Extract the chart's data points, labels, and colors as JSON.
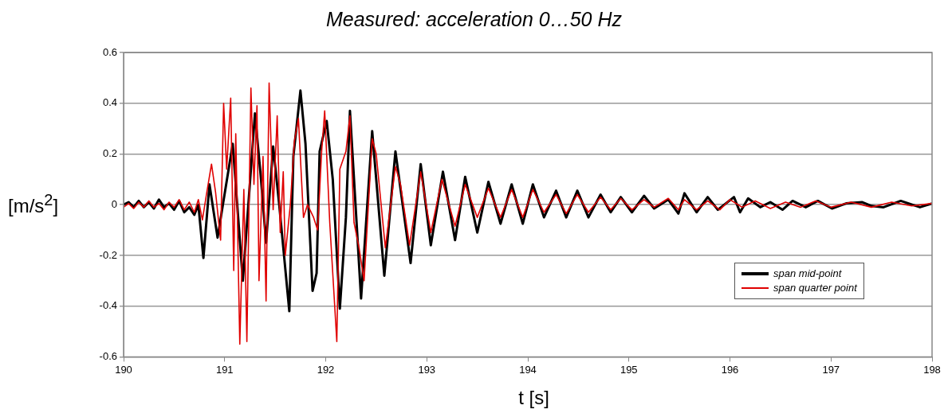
{
  "chart_data": {
    "type": "line",
    "title": "Measured: acceleration 0…50 Hz",
    "xlabel": "t [s]",
    "ylabel": "[m/s$^{2}$]",
    "xlim": [
      190,
      198
    ],
    "xticks": [
      190,
      191,
      192,
      193,
      194,
      195,
      196,
      197,
      198
    ],
    "ylim": [
      -0.6,
      0.6
    ],
    "yticks": [
      -0.6,
      -0.4,
      -0.2,
      0,
      0.2,
      0.4,
      0.6
    ],
    "grid": "y",
    "legend": "bottom right",
    "marker": "none",
    "line_style": "solid",
    "series": [
      {
        "name": "span mid-point",
        "color": "#000000",
        "x": [
          190.0,
          190.05,
          190.1,
          190.15,
          190.2,
          190.25,
          190.3,
          190.35,
          190.4,
          190.45,
          190.5,
          190.55,
          190.6,
          190.65,
          190.7,
          190.74,
          190.79,
          190.85,
          190.93,
          191.08,
          191.18,
          191.3,
          191.36,
          191.41,
          191.48,
          191.54,
          191.64,
          191.68,
          191.75,
          191.8,
          191.87,
          191.91,
          191.94,
          192.01,
          192.07,
          192.14,
          192.2,
          192.24,
          192.35,
          192.46,
          192.58,
          192.69,
          192.84,
          192.94,
          193.04,
          193.16,
          193.28,
          193.38,
          193.5,
          193.61,
          193.73,
          193.84,
          193.95,
          194.05,
          194.16,
          194.28,
          194.38,
          194.49,
          194.6,
          194.72,
          194.82,
          194.92,
          195.03,
          195.15,
          195.25,
          195.39,
          195.49,
          195.55,
          195.67,
          195.78,
          195.88,
          196.04,
          196.1,
          196.18,
          196.3,
          196.4,
          196.52,
          196.62,
          196.75,
          196.87,
          197.01,
          197.15,
          197.31,
          197.4,
          197.52,
          197.69,
          197.88,
          198.0
        ],
        "values": [
          0,
          0.01,
          -0.01,
          0.015,
          -0.01,
          0.01,
          -0.015,
          0.02,
          -0.01,
          0.005,
          -0.02,
          0.015,
          -0.03,
          -0.01,
          -0.04,
          0,
          -0.21,
          0.08,
          -0.13,
          0.24,
          -0.3,
          0.36,
          0.1,
          -0.15,
          0.23,
          0,
          -0.42,
          0.19,
          0.45,
          0.24,
          -0.34,
          -0.27,
          0.21,
          0.33,
          0.1,
          -0.41,
          -0.05,
          0.37,
          -0.37,
          0.29,
          -0.28,
          0.21,
          -0.23,
          0.16,
          -0.16,
          0.13,
          -0.14,
          0.11,
          -0.11,
          0.09,
          -0.075,
          0.08,
          -0.075,
          0.08,
          -0.05,
          0.055,
          -0.05,
          0.055,
          -0.05,
          0.04,
          -0.03,
          0.03,
          -0.03,
          0.035,
          -0.015,
          0.02,
          -0.035,
          0.045,
          -0.03,
          0.03,
          -0.02,
          0.03,
          -0.03,
          0.025,
          -0.01,
          0.01,
          -0.02,
          0.015,
          -0.01,
          0.015,
          -0.015,
          0.005,
          0.01,
          -0.005,
          -0.01,
          0.015,
          -0.01,
          0.005
        ]
      },
      {
        "name": "span quarter point",
        "color": "#e00000",
        "x": [
          190.0,
          190.05,
          190.1,
          190.15,
          190.2,
          190.25,
          190.3,
          190.35,
          190.4,
          190.45,
          190.5,
          190.55,
          190.6,
          190.65,
          190.7,
          190.74,
          190.78,
          190.82,
          190.87,
          190.91,
          190.96,
          190.99,
          191.02,
          191.06,
          191.09,
          191.11,
          191.15,
          191.19,
          191.22,
          191.26,
          191.29,
          191.32,
          191.34,
          191.38,
          191.41,
          191.44,
          191.48,
          191.52,
          191.55,
          191.58,
          191.6,
          191.65,
          191.69,
          191.73,
          191.78,
          191.82,
          191.88,
          191.92,
          191.96,
          191.99,
          192.04,
          192.11,
          192.14,
          192.2,
          192.24,
          192.28,
          192.33,
          192.38,
          192.46,
          192.5,
          192.59,
          192.69,
          192.74,
          192.83,
          192.94,
          193.04,
          193.15,
          193.28,
          193.38,
          193.5,
          193.61,
          193.73,
          193.84,
          193.95,
          194.05,
          194.16,
          194.28,
          194.38,
          194.49,
          194.6,
          194.72,
          194.82,
          194.92,
          195.03,
          195.15,
          195.25,
          195.39,
          195.49,
          195.55,
          195.67,
          195.78,
          195.9,
          196.0,
          196.12,
          196.25,
          196.4,
          196.55,
          196.7,
          196.85,
          197.0,
          197.2,
          197.4,
          197.6,
          197.8,
          198.0
        ],
        "values": [
          -0.01,
          0.005,
          -0.015,
          0.01,
          -0.01,
          0.015,
          -0.01,
          0.005,
          -0.02,
          0.01,
          -0.01,
          0.02,
          -0.02,
          0.01,
          -0.03,
          0.02,
          -0.06,
          0.04,
          0.16,
          0.05,
          -0.14,
          0.4,
          0.14,
          0.42,
          -0.26,
          0.28,
          -0.55,
          0.06,
          -0.54,
          0.46,
          0.08,
          0.39,
          -0.3,
          0.19,
          -0.38,
          0.48,
          -0.02,
          0.35,
          -0.11,
          0.13,
          -0.2,
          0,
          0.25,
          0.34,
          -0.05,
          0,
          -0.05,
          -0.1,
          0.21,
          0.37,
          -0.07,
          -0.54,
          0.14,
          0.21,
          0.35,
          -0.07,
          -0.17,
          -0.3,
          0.26,
          0.2,
          -0.17,
          0.15,
          0.08,
          -0.16,
          0.13,
          -0.11,
          0.1,
          -0.085,
          0.08,
          -0.05,
          0.065,
          -0.05,
          0.06,
          -0.05,
          0.06,
          -0.03,
          0.04,
          -0.035,
          0.04,
          -0.03,
          0.03,
          -0.02,
          0.025,
          -0.02,
          0.02,
          -0.01,
          0.025,
          -0.02,
          0.02,
          -0.02,
          0.015,
          -0.02,
          0.02,
          -0.01,
          0.015,
          -0.015,
          0.01,
          -0.01,
          0.015,
          -0.01,
          0.01,
          -0.01,
          0.01,
          -0.005,
          0.005
        ]
      }
    ]
  }
}
